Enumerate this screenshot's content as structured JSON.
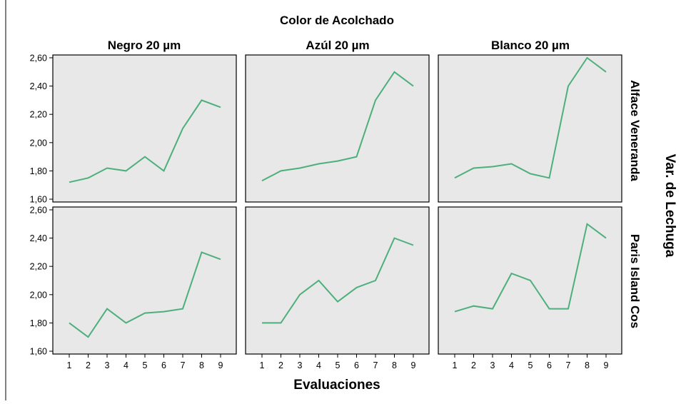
{
  "chart_data": {
    "type": "line",
    "layout": "small-multiples",
    "column_group_title": "Color de Acolchado",
    "columns": [
      "Negro 20 µm",
      "Azúl 20 µm",
      "Blanco 20 µm"
    ],
    "row_group_title": "Var. de Lechuga",
    "rows": [
      "Alface Veneranda",
      "Paris Island Cos"
    ],
    "xlabel": "Evaluaciones",
    "x": [
      1,
      2,
      3,
      4,
      5,
      6,
      7,
      8,
      9
    ],
    "x_tick_labels": [
      "1",
      "2",
      "3",
      "4",
      "5",
      "6",
      "7",
      "8",
      "9"
    ],
    "y_ticks": [
      1.6,
      1.8,
      2.0,
      2.2,
      2.4,
      2.6
    ],
    "y_tick_labels": [
      "1,60",
      "1,80",
      "2,00",
      "2,20",
      "2,40",
      "2,60"
    ],
    "ylim": [
      1.58,
      2.62
    ],
    "line_color": "#4daf7c",
    "panel_background": "#e8e8e8",
    "panels": [
      {
        "row": 0,
        "col": 0,
        "values": [
          1.72,
          1.75,
          1.82,
          1.8,
          1.9,
          1.8,
          2.1,
          2.3,
          2.25
        ]
      },
      {
        "row": 0,
        "col": 1,
        "values": [
          1.73,
          1.8,
          1.82,
          1.85,
          1.87,
          1.9,
          2.3,
          2.5,
          2.4
        ]
      },
      {
        "row": 0,
        "col": 2,
        "values": [
          1.75,
          1.82,
          1.83,
          1.85,
          1.78,
          1.75,
          2.4,
          2.6,
          2.5
        ]
      },
      {
        "row": 1,
        "col": 0,
        "values": [
          1.8,
          1.7,
          1.9,
          1.8,
          1.87,
          1.88,
          1.9,
          2.3,
          2.25
        ]
      },
      {
        "row": 1,
        "col": 1,
        "values": [
          1.8,
          1.8,
          2.0,
          2.1,
          1.95,
          2.05,
          2.1,
          2.4,
          2.35
        ]
      },
      {
        "row": 1,
        "col": 2,
        "values": [
          1.88,
          1.92,
          1.9,
          2.15,
          2.1,
          1.9,
          1.9,
          2.5,
          2.4
        ]
      }
    ]
  }
}
